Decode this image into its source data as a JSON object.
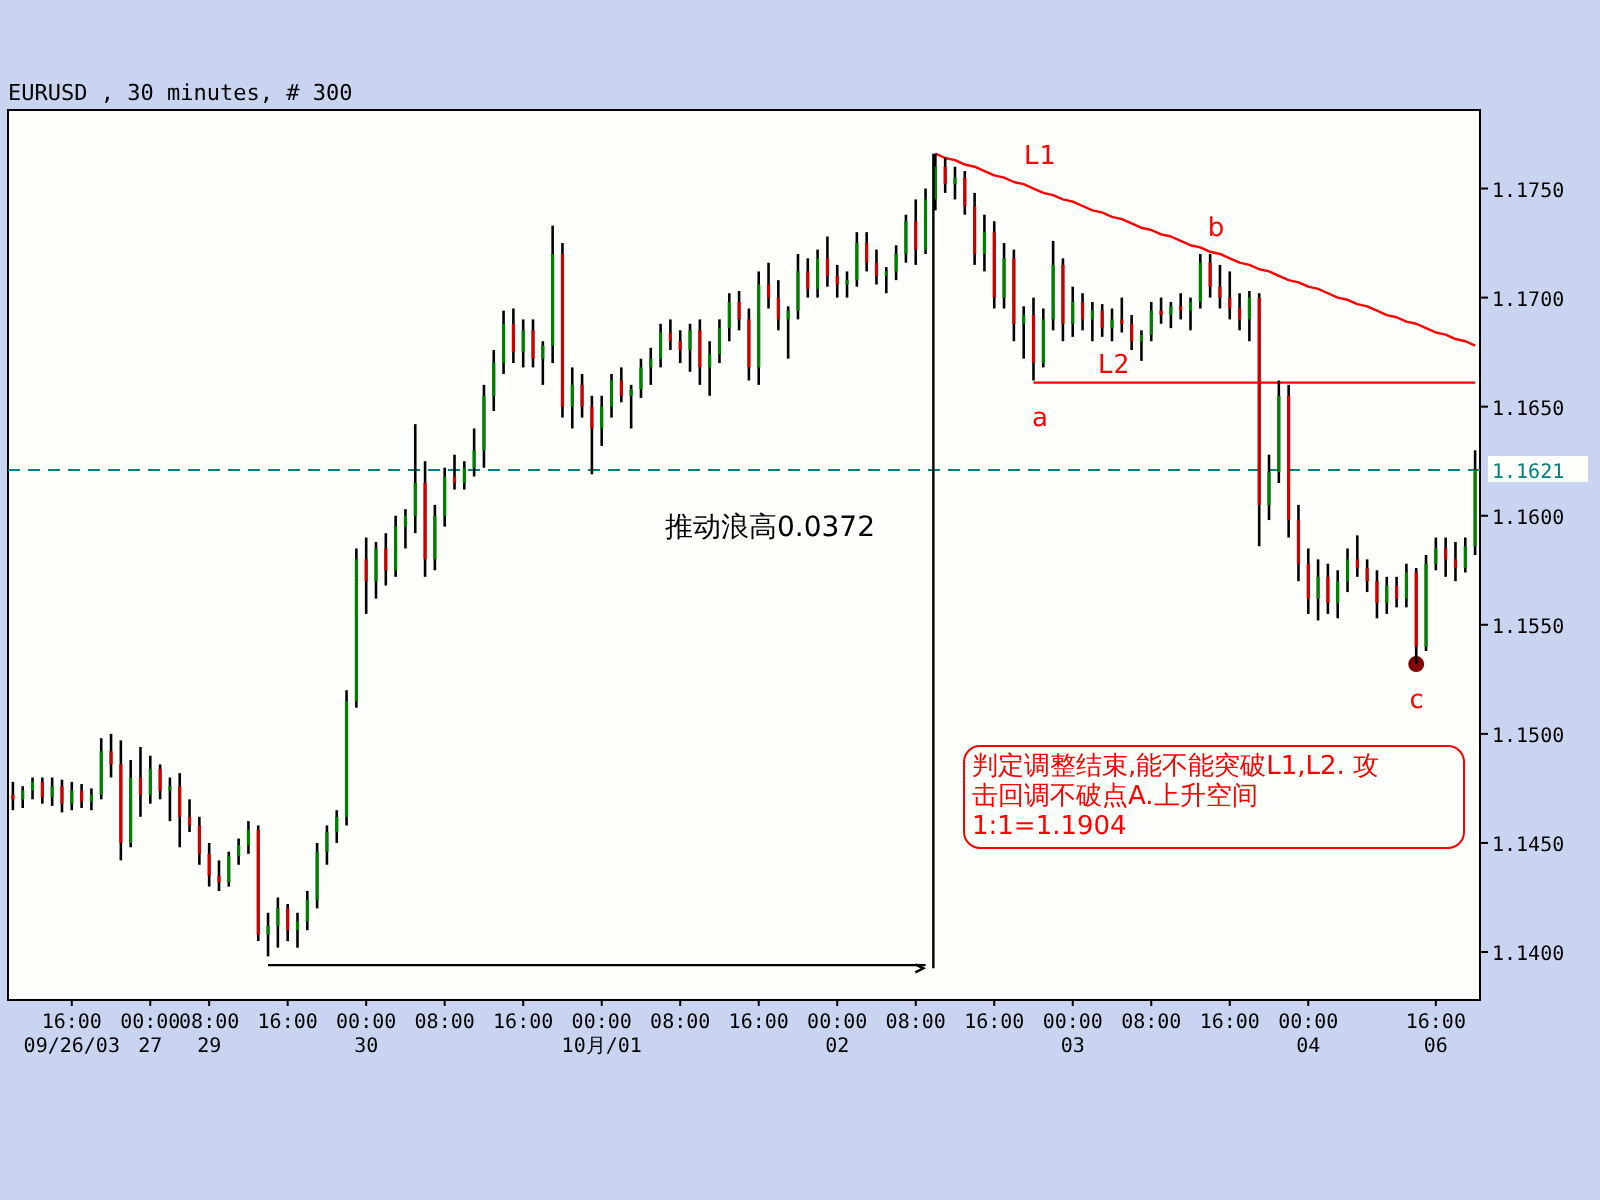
{
  "chart_data": {
    "type": "candlestick",
    "title": "EURUSD , 30 minutes, # 300",
    "categories": [
      null,
      null,
      null,
      null,
      null,
      null,
      "16:00\n09/26/03",
      null,
      null,
      null,
      null,
      null,
      null,
      null,
      "00:00\n27",
      null,
      null,
      null,
      null,
      null,
      "08:00\n29",
      null,
      null,
      null,
      null,
      null,
      null,
      null,
      "16:00",
      null,
      null,
      null,
      null,
      null,
      null,
      null,
      "00:00\n30",
      null,
      null,
      null,
      null,
      null,
      null,
      null,
      "08:00",
      null,
      null,
      null,
      null,
      null,
      null,
      null,
      "16:00",
      null,
      null,
      null,
      null,
      null,
      null,
      null,
      "00:00\n10月/01",
      null,
      null,
      null,
      null,
      null,
      null,
      null,
      "08:00",
      null,
      null,
      null,
      null,
      null,
      null,
      null,
      "16:00",
      null,
      null,
      null,
      null,
      null,
      null,
      null,
      "00:00\n02",
      null,
      null,
      null,
      null,
      null,
      null,
      null,
      "08:00",
      null,
      null,
      null,
      null,
      null,
      null,
      null,
      "16:00",
      null,
      null,
      null,
      null,
      null,
      null,
      null,
      "00:00\n03",
      null,
      null,
      null,
      null,
      null,
      null,
      null,
      "08:00",
      null,
      null,
      null,
      null,
      null,
      null,
      null,
      "16:00",
      null,
      null,
      null,
      null,
      null,
      null,
      null,
      "00:00\n04",
      null,
      null,
      null,
      null,
      null,
      null,
      null,
      null,
      null,
      null,
      null,
      null,
      "16:00\n06",
      null,
      null,
      null,
      null
    ],
    "ohlc": [
      [
        1.1472,
        1.1478,
        1.1465,
        1.147
      ],
      [
        1.147,
        1.1476,
        1.1466,
        1.1474
      ],
      [
        1.1474,
        1.148,
        1.147,
        1.1478
      ],
      [
        1.1478,
        1.148,
        1.1468,
        1.1471
      ],
      [
        1.1471,
        1.148,
        1.1467,
        1.1476
      ],
      [
        1.1476,
        1.1479,
        1.1464,
        1.1468
      ],
      [
        1.1468,
        1.1478,
        1.1465,
        1.1474
      ],
      [
        1.1474,
        1.1477,
        1.1466,
        1.1469
      ],
      [
        1.1469,
        1.1475,
        1.1465,
        1.1472
      ],
      [
        1.1472,
        1.1498,
        1.147,
        1.1492
      ],
      [
        1.1492,
        1.15,
        1.148,
        1.1486
      ],
      [
        1.1486,
        1.1497,
        1.1442,
        1.145
      ],
      [
        1.145,
        1.1488,
        1.1448,
        1.148
      ],
      [
        1.148,
        1.1494,
        1.1462,
        1.1472
      ],
      [
        1.1472,
        1.149,
        1.1468,
        1.1484
      ],
      [
        1.1484,
        1.1486,
        1.147,
        1.1474
      ],
      [
        1.1474,
        1.148,
        1.146,
        1.1476
      ],
      [
        1.1476,
        1.1482,
        1.1448,
        1.1462
      ],
      [
        1.1462,
        1.147,
        1.1455,
        1.1458
      ],
      [
        1.1458,
        1.1462,
        1.144,
        1.1445
      ],
      [
        1.1445,
        1.145,
        1.143,
        1.1435
      ],
      [
        1.1435,
        1.1442,
        1.1428,
        1.1432
      ],
      [
        1.1432,
        1.1446,
        1.143,
        1.1444
      ],
      [
        1.1444,
        1.1452,
        1.144,
        1.1449
      ],
      [
        1.1449,
        1.146,
        1.1445,
        1.1456
      ],
      [
        1.1456,
        1.1458,
        1.1405,
        1.1408
      ],
      [
        1.1408,
        1.1418,
        1.1398,
        1.1412
      ],
      [
        1.1412,
        1.1425,
        1.1402,
        1.142
      ],
      [
        1.142,
        1.1422,
        1.1405,
        1.141
      ],
      [
        1.141,
        1.1418,
        1.1402,
        1.1414
      ],
      [
        1.1414,
        1.1428,
        1.141,
        1.1424
      ],
      [
        1.1424,
        1.145,
        1.142,
        1.1446
      ],
      [
        1.1446,
        1.1458,
        1.144,
        1.1455
      ],
      [
        1.1455,
        1.1465,
        1.145,
        1.1462
      ],
      [
        1.1462,
        1.152,
        1.1458,
        1.1515
      ],
      [
        1.1515,
        1.1585,
        1.1512,
        1.158
      ],
      [
        1.158,
        1.159,
        1.1555,
        1.157
      ],
      [
        1.157,
        1.1588,
        1.1562,
        1.1585
      ],
      [
        1.1585,
        1.1592,
        1.1568,
        1.1575
      ],
      [
        1.1575,
        1.16,
        1.1572,
        1.1595
      ],
      [
        1.1595,
        1.1603,
        1.1585,
        1.16
      ],
      [
        1.16,
        1.1642,
        1.1592,
        1.1615
      ],
      [
        1.1615,
        1.1625,
        1.1572,
        1.158
      ],
      [
        1.158,
        1.1605,
        1.1575,
        1.16
      ],
      [
        1.16,
        1.1622,
        1.1595,
        1.1618
      ],
      [
        1.1618,
        1.1628,
        1.1612,
        1.1615
      ],
      [
        1.1615,
        1.1625,
        1.1612,
        1.1622
      ],
      [
        1.1622,
        1.164,
        1.1618,
        1.163
      ],
      [
        1.163,
        1.166,
        1.1622,
        1.1655
      ],
      [
        1.1655,
        1.1676,
        1.1648,
        1.167
      ],
      [
        1.167,
        1.1694,
        1.1665,
        1.1688
      ],
      [
        1.1688,
        1.1695,
        1.167,
        1.1675
      ],
      [
        1.1675,
        1.169,
        1.1668,
        1.1685
      ],
      [
        1.1685,
        1.169,
        1.1668,
        1.1672
      ],
      [
        1.1672,
        1.168,
        1.166,
        1.1678
      ],
      [
        1.1678,
        1.1733,
        1.167,
        1.172
      ],
      [
        1.172,
        1.1725,
        1.1645,
        1.165
      ],
      [
        1.165,
        1.1668,
        1.164,
        1.166
      ],
      [
        1.166,
        1.1665,
        1.1645,
        1.165
      ],
      [
        1.165,
        1.1655,
        1.1619,
        1.164
      ],
      [
        1.164,
        1.1655,
        1.1632,
        1.165
      ],
      [
        1.165,
        1.1665,
        1.1645,
        1.1662
      ],
      [
        1.1662,
        1.1668,
        1.1652,
        1.1655
      ],
      [
        1.1655,
        1.166,
        1.164,
        1.1658
      ],
      [
        1.1658,
        1.1672,
        1.1654,
        1.1668
      ],
      [
        1.1668,
        1.1677,
        1.166,
        1.1672
      ],
      [
        1.1672,
        1.1688,
        1.1668,
        1.1684
      ],
      [
        1.1684,
        1.169,
        1.1676,
        1.168
      ],
      [
        1.168,
        1.1685,
        1.167,
        1.1676
      ],
      [
        1.1676,
        1.1688,
        1.1666,
        1.1685
      ],
      [
        1.1685,
        1.169,
        1.166,
        1.1668
      ],
      [
        1.1668,
        1.168,
        1.1655,
        1.1674
      ],
      [
        1.1674,
        1.169,
        1.167,
        1.1686
      ],
      [
        1.1686,
        1.1702,
        1.168,
        1.1698
      ],
      [
        1.1698,
        1.1703,
        1.1685,
        1.169
      ],
      [
        1.169,
        1.1695,
        1.1662,
        1.1668
      ],
      [
        1.1668,
        1.1712,
        1.166,
        1.1706
      ],
      [
        1.1706,
        1.1716,
        1.1695,
        1.17
      ],
      [
        1.17,
        1.1708,
        1.1685,
        1.169
      ],
      [
        1.169,
        1.1696,
        1.1672,
        1.1694
      ],
      [
        1.1694,
        1.172,
        1.169,
        1.1712
      ],
      [
        1.1712,
        1.1718,
        1.17,
        1.1704
      ],
      [
        1.1704,
        1.1722,
        1.17,
        1.1718
      ],
      [
        1.1718,
        1.1728,
        1.1705,
        1.171
      ],
      [
        1.171,
        1.1715,
        1.17,
        1.1706
      ],
      [
        1.1706,
        1.1712,
        1.17,
        1.1708
      ],
      [
        1.1708,
        1.173,
        1.1705,
        1.1725
      ],
      [
        1.1725,
        1.173,
        1.1712,
        1.1716
      ],
      [
        1.1716,
        1.1722,
        1.1706,
        1.171
      ],
      [
        1.171,
        1.1714,
        1.1702,
        1.1712
      ],
      [
        1.1712,
        1.1724,
        1.1708,
        1.172
      ],
      [
        1.172,
        1.1738,
        1.1716,
        1.1735
      ],
      [
        1.1735,
        1.1745,
        1.1715,
        1.1722
      ],
      [
        1.1722,
        1.175,
        1.172,
        1.1745
      ],
      [
        1.1745,
        1.1766,
        1.174,
        1.176
      ],
      [
        1.176,
        1.1764,
        1.1748,
        1.1752
      ],
      [
        1.1752,
        1.176,
        1.1745,
        1.1755
      ],
      [
        1.1755,
        1.1758,
        1.1738,
        1.1742
      ],
      [
        1.1742,
        1.1748,
        1.1715,
        1.172
      ],
      [
        1.172,
        1.1738,
        1.1712,
        1.173
      ],
      [
        1.173,
        1.1735,
        1.1695,
        1.17
      ],
      [
        1.17,
        1.1725,
        1.1695,
        1.1718
      ],
      [
        1.1718,
        1.1722,
        1.168,
        1.1688
      ],
      [
        1.1688,
        1.1696,
        1.1672,
        1.1692
      ],
      [
        1.1692,
        1.17,
        1.1662,
        1.167
      ],
      [
        1.167,
        1.1695,
        1.1668,
        1.169
      ],
      [
        1.169,
        1.1726,
        1.1685,
        1.1715
      ],
      [
        1.1715,
        1.1718,
        1.168,
        1.1688
      ],
      [
        1.1688,
        1.1705,
        1.1682,
        1.1698
      ],
      [
        1.1698,
        1.1702,
        1.1685,
        1.169
      ],
      [
        1.169,
        1.1698,
        1.168,
        1.1694
      ],
      [
        1.1694,
        1.1697,
        1.1682,
        1.1686
      ],
      [
        1.1686,
        1.1695,
        1.168,
        1.169
      ],
      [
        1.169,
        1.17,
        1.1684,
        1.1688
      ],
      [
        1.1688,
        1.1692,
        1.1676,
        1.168
      ],
      [
        1.168,
        1.1685,
        1.1671,
        1.1683
      ],
      [
        1.1683,
        1.1698,
        1.168,
        1.1694
      ],
      [
        1.1694,
        1.17,
        1.1688,
        1.1692
      ],
      [
        1.1692,
        1.1698,
        1.1686,
        1.1696
      ],
      [
        1.1696,
        1.1702,
        1.169,
        1.1694
      ],
      [
        1.1694,
        1.17,
        1.1685,
        1.1698
      ],
      [
        1.1698,
        1.172,
        1.1695,
        1.1716
      ],
      [
        1.1716,
        1.172,
        1.17,
        1.1705
      ],
      [
        1.1705,
        1.1715,
        1.1695,
        1.17
      ],
      [
        1.17,
        1.1712,
        1.169,
        1.1695
      ],
      [
        1.1695,
        1.1702,
        1.1685,
        1.169
      ],
      [
        1.169,
        1.1703,
        1.168,
        1.17
      ],
      [
        1.17,
        1.1702,
        1.1586,
        1.1605
      ],
      [
        1.1605,
        1.1628,
        1.1598,
        1.162
      ],
      [
        1.162,
        1.1662,
        1.1615,
        1.1655
      ],
      [
        1.1655,
        1.166,
        1.159,
        1.1598
      ],
      [
        1.1598,
        1.1605,
        1.157,
        1.1578
      ],
      [
        1.1578,
        1.1585,
        1.1555,
        1.1562
      ],
      [
        1.1562,
        1.158,
        1.1552,
        1.1572
      ],
      [
        1.1572,
        1.1578,
        1.1555,
        1.156
      ],
      [
        1.156,
        1.1575,
        1.1553,
        1.157
      ],
      [
        1.157,
        1.1585,
        1.1565,
        1.158
      ],
      [
        1.158,
        1.1591,
        1.1572,
        1.1576
      ],
      [
        1.1576,
        1.158,
        1.1565,
        1.157
      ],
      [
        1.157,
        1.1575,
        1.1553,
        1.156
      ],
      [
        1.156,
        1.1572,
        1.1555,
        1.1568
      ],
      [
        1.1568,
        1.1572,
        1.1558,
        1.1562
      ],
      [
        1.1562,
        1.1578,
        1.1558,
        1.1574
      ],
      [
        1.1574,
        1.1576,
        1.1532,
        1.154
      ],
      [
        1.154,
        1.1582,
        1.1538,
        1.1578
      ],
      [
        1.1578,
        1.159,
        1.1575,
        1.1585
      ],
      [
        1.1585,
        1.159,
        1.1572,
        1.158
      ],
      [
        1.158,
        1.1588,
        1.157,
        1.1576
      ],
      [
        1.1576,
        1.159,
        1.1574,
        1.1586
      ],
      [
        1.1586,
        1.163,
        1.1582,
        1.1621
      ]
    ],
    "series": [
      {
        "name": "L1",
        "type": "line",
        "color": "#ff0000",
        "values": [
          null,
          null,
          null,
          null,
          null,
          null,
          null,
          null,
          null,
          null,
          null,
          null,
          null,
          null,
          null,
          null,
          null,
          null,
          null,
          null,
          null,
          null,
          null,
          null,
          null,
          null,
          null,
          null,
          null,
          null,
          null,
          null,
          null,
          null,
          null,
          null,
          null,
          null,
          null,
          null,
          null,
          null,
          null,
          null,
          null,
          null,
          null,
          null,
          null,
          null,
          null,
          null,
          null,
          null,
          null,
          null,
          null,
          null,
          null,
          null,
          null,
          null,
          null,
          null,
          null,
          null,
          null,
          null,
          null,
          null,
          null,
          null,
          null,
          null,
          null,
          null,
          null,
          null,
          null,
          null,
          null,
          null,
          null,
          null,
          null,
          null,
          null,
          null,
          null,
          null,
          null,
          null,
          null,
          null,
          1.1766,
          1.1764,
          1.1763,
          1.1761,
          1.176,
          1.1758,
          1.1756,
          1.1755,
          1.1753,
          1.1752,
          1.175,
          1.1748,
          1.1747,
          1.1745,
          1.1744,
          1.1742,
          1.174,
          1.1739,
          1.1737,
          1.1736,
          1.1734,
          1.1732,
          1.1731,
          1.1729,
          1.1728,
          1.1726,
          1.1724,
          1.1723,
          1.1721,
          1.172,
          1.1718,
          1.1716,
          1.1715,
          1.1713,
          1.1712,
          1.171,
          1.1708,
          1.1707,
          1.1705,
          1.1704,
          1.1702,
          1.17,
          1.1699,
          1.1697,
          1.1696,
          1.1694,
          1.1692,
          1.1691,
          1.1689,
          1.1688,
          1.1686,
          1.1684,
          1.1683,
          1.1681,
          1.168,
          1.1678
        ]
      },
      {
        "name": "L2",
        "type": "line",
        "color": "#ff0000",
        "values": [
          null,
          null,
          null,
          null,
          null,
          null,
          null,
          null,
          null,
          null,
          null,
          null,
          null,
          null,
          null,
          null,
          null,
          null,
          null,
          null,
          null,
          null,
          null,
          null,
          null,
          null,
          null,
          null,
          null,
          null,
          null,
          null,
          null,
          null,
          null,
          null,
          null,
          null,
          null,
          null,
          null,
          null,
          null,
          null,
          null,
          null,
          null,
          null,
          null,
          null,
          null,
          null,
          null,
          null,
          null,
          null,
          null,
          null,
          null,
          null,
          null,
          null,
          null,
          null,
          null,
          null,
          null,
          null,
          null,
          null,
          null,
          null,
          null,
          null,
          null,
          null,
          null,
          null,
          null,
          null,
          null,
          null,
          null,
          null,
          null,
          null,
          null,
          null,
          null,
          null,
          null,
          null,
          null,
          null,
          null,
          null,
          null,
          null,
          null,
          null,
          null,
          null,
          null,
          null,
          1.1661,
          1.1661,
          1.1661,
          1.1661,
          1.1661,
          1.1661,
          1.1661,
          1.1661,
          1.1661,
          1.1661,
          1.1661,
          1.1661,
          1.1661,
          1.1661,
          1.1661,
          1.1661,
          1.1661,
          1.1661,
          1.1661,
          1.1661,
          1.1661,
          1.1661,
          1.1661,
          1.1661,
          1.1661,
          1.1661,
          1.1661,
          1.1661,
          1.1661,
          1.1661,
          1.1661,
          1.1661,
          1.1661,
          1.1661,
          1.1661,
          1.1661,
          1.1661,
          1.1661,
          1.1661,
          1.1661,
          1.1661,
          1.1661,
          1.1661,
          1.1661,
          1.1661,
          1.1661
        ]
      },
      {
        "type": "line",
        "color": "#000000",
        "values": [
          null,
          null,
          null,
          null,
          null,
          null,
          null,
          null,
          null,
          null,
          null,
          null,
          null,
          null,
          null,
          null,
          null,
          null,
          null,
          null,
          null,
          null,
          null,
          null,
          null,
          null,
          1.1394,
          1.1394,
          1.1394,
          1.1394,
          1.1394,
          1.1394,
          1.1394,
          1.1394,
          1.1394,
          1.1394,
          1.1394,
          1.1394,
          1.1394,
          1.1394,
          1.1394,
          1.1394,
          1.1394,
          1.1394,
          1.1394,
          1.1394,
          1.1394,
          1.1394,
          1.1394,
          1.1394,
          1.1394,
          1.1394,
          1.1394,
          1.1394,
          1.1394,
          1.1394,
          1.1394,
          1.1394,
          1.1394,
          1.1394,
          1.1394,
          1.1394,
          1.1394,
          1.1394,
          1.1394,
          1.1394,
          1.1394,
          1.1394,
          1.1394,
          1.1394,
          1.1394,
          1.1394,
          1.1394,
          1.1394,
          1.1394,
          1.1394,
          1.1394,
          1.1394,
          1.1394,
          1.1394,
          1.1394,
          1.1394,
          1.1394,
          1.1394,
          1.1394,
          1.1394,
          1.1394,
          1.1394,
          1.1394,
          1.1394,
          1.1394,
          1.1394,
          1.1394,
          1.1394,
          null,
          null,
          null,
          null,
          null,
          null,
          null,
          null,
          null,
          null,
          null,
          null,
          null,
          null,
          null,
          null,
          null,
          null,
          null,
          null,
          null,
          null,
          null,
          null,
          null,
          null,
          null,
          null,
          null,
          null,
          null,
          null,
          null,
          null,
          null,
          null,
          null,
          null,
          null,
          null,
          null,
          null,
          null,
          null,
          null,
          null,
          null,
          null,
          null,
          null,
          null,
          null,
          null,
          null,
          null,
          null
        ]
      },
      {
        "name": "c",
        "type": "scatter",
        "color": "#800000",
        "marker": "circle",
        "values": [
          null,
          null,
          null,
          null,
          null,
          null,
          null,
          null,
          null,
          null,
          null,
          null,
          null,
          null,
          null,
          null,
          null,
          null,
          null,
          null,
          null,
          null,
          null,
          null,
          null,
          null,
          null,
          null,
          null,
          null,
          null,
          null,
          null,
          null,
          null,
          null,
          null,
          null,
          null,
          null,
          null,
          null,
          null,
          null,
          null,
          null,
          null,
          null,
          null,
          null,
          null,
          null,
          null,
          null,
          null,
          null,
          null,
          null,
          null,
          null,
          null,
          null,
          null,
          null,
          null,
          null,
          null,
          null,
          null,
          null,
          null,
          null,
          null,
          null,
          null,
          null,
          null,
          null,
          null,
          null,
          null,
          null,
          null,
          null,
          null,
          null,
          null,
          null,
          null,
          null,
          null,
          null,
          null,
          null,
          null,
          null,
          null,
          null,
          null,
          null,
          null,
          null,
          null,
          null,
          null,
          null,
          null,
          null,
          null,
          null,
          null,
          null,
          null,
          null,
          null,
          null,
          null,
          null,
          null,
          null,
          null,
          null,
          null,
          null,
          null,
          null,
          null,
          null,
          null,
          null,
          null,
          null,
          null,
          null,
          null,
          null,
          null,
          null,
          null,
          null,
          null,
          null,
          null,
          1.1532,
          null,
          null,
          null,
          null,
          null,
          null
        ]
      }
    ],
    "ylim": [
      1.1378,
      1.1786
    ],
    "yticks": [
      {
        "value": 1.14,
        "label": "1.1400"
      },
      {
        "value": 1.145,
        "label": "1.1450"
      },
      {
        "value": 1.15,
        "label": "1.1500"
      },
      {
        "value": 1.155,
        "label": "1.1550"
      },
      {
        "value": 1.16,
        "label": "1.1600"
      },
      {
        "value": 1.165,
        "label": "1.1650"
      },
      {
        "value": 1.17,
        "label": "1.1700"
      },
      {
        "value": 1.175,
        "label": "1.1750"
      }
    ],
    "ref_lines": [
      {
        "axis": "y",
        "value": 1.1621,
        "label": "1.1621",
        "color": "#008080",
        "line_style": "dashed"
      }
    ],
    "annotations": [
      "推动浪高0.0372",
      "a",
      "b",
      "判定调整结束,能不能突破L1,L2. 攻击回调不破点A.上升空间\n1:1=1.1904"
    ],
    "grid": false,
    "legend": false
  }
}
